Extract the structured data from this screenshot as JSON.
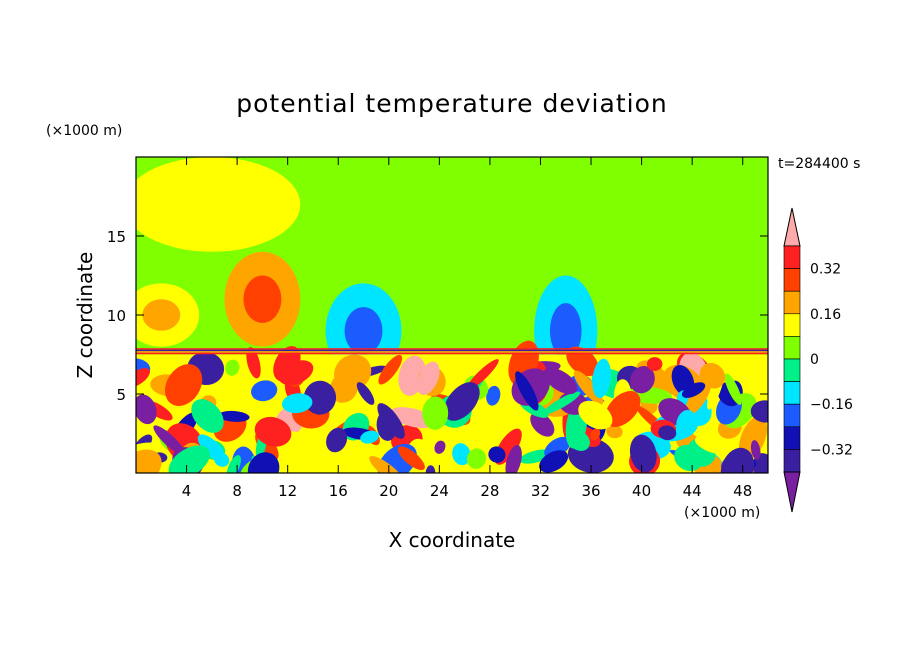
{
  "chart_data": {
    "type": "heatmap",
    "title": "potential temperature deviation",
    "xlabel": "X coordinate",
    "ylabel": "Z coordinate",
    "x_unit": "(×1000 m)",
    "y_unit": "(×1000 m)",
    "time_label": "t=284400 s",
    "xlim": [
      0,
      50
    ],
    "ylim": [
      0,
      20
    ],
    "x_ticks": [
      4,
      8,
      12,
      16,
      20,
      24,
      28,
      32,
      36,
      40,
      44,
      48
    ],
    "y_ticks": [
      5,
      10,
      15
    ],
    "colorbar": {
      "levels": [
        -0.4,
        -0.32,
        -0.24,
        -0.16,
        -0.08,
        0,
        0.08,
        0.16,
        0.24,
        0.32,
        0.4
      ],
      "tick_labels": [
        "−0.32",
        "−0.16",
        "0",
        "0.16",
        "0.32"
      ],
      "tick_values": [
        -0.32,
        -0.16,
        0,
        0.16,
        0.32
      ],
      "colors": [
        "#7b1fa2",
        "#3a1fa0",
        "#1010b4",
        "#1c5cff",
        "#00e5ff",
        "#00f088",
        "#80ff00",
        "#ffff00",
        "#ffa500",
        "#ff4000",
        "#ff2020",
        "#ffaaaa"
      ],
      "extend": "both"
    },
    "features": [
      {
        "x": 10,
        "z": 11,
        "rx": 3,
        "rz": 3,
        "value": 0.18
      },
      {
        "x": 2,
        "z": 10,
        "rx": 3,
        "rz": 2,
        "value": 0.14
      },
      {
        "x": 18,
        "z": 9,
        "rx": 3,
        "rz": 3,
        "value": -0.12
      },
      {
        "x": 34,
        "z": 9,
        "rx": 2.5,
        "rz": 3.5,
        "value": -0.14
      },
      {
        "x": 30,
        "z": 3,
        "rx": 3,
        "rz": 3,
        "value": 0.3
      },
      {
        "x": 6,
        "z": 4,
        "rx": 4,
        "rz": 2,
        "value": -0.36
      },
      {
        "x": 24,
        "z": 5,
        "rx": 2,
        "rz": 2,
        "value": -0.34
      },
      {
        "x": 46,
        "z": 3,
        "rx": 2,
        "rz": 2,
        "value": -0.3
      }
    ]
  }
}
